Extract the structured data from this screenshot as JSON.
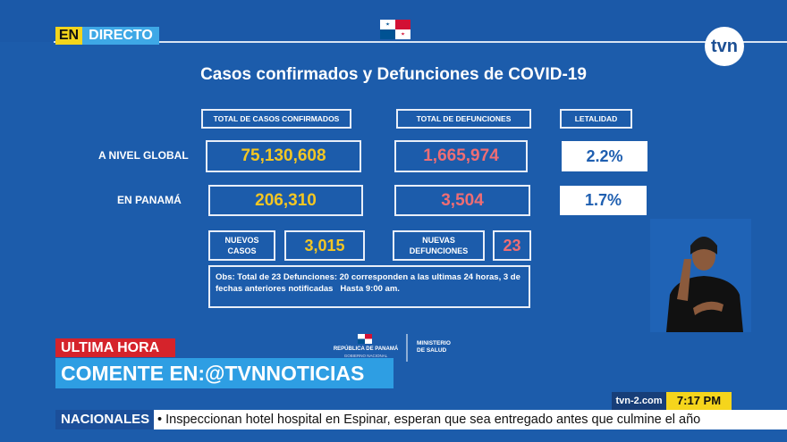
{
  "badge": {
    "en": "EN",
    "directo": "DIRECTO"
  },
  "title": "Casos confirmados y Defunciones de COVID-19",
  "table": {
    "headers": [
      "TOTAL DE CASOS CONFIRMADOS",
      "TOTAL DE DEFUNCIONES",
      "LETALIDAD"
    ],
    "rows": [
      {
        "label": "A NIVEL GLOBAL",
        "cases": "75,130,608",
        "deaths": "1,665,974",
        "lethality": "2.2%"
      },
      {
        "label": "EN PANAMÁ",
        "cases": "206,310",
        "deaths": "3,504",
        "lethality": "1.7%"
      }
    ]
  },
  "new": {
    "cases_label": "NUEVOS CASOS",
    "cases": "3,015",
    "deaths_label": "NUEVAS DEFUNCIONES",
    "deaths": "23"
  },
  "note": "Obs: Total de 23 Defunciones: 20 corresponden a las ultimas 24 horas, 3 de fechas anteriores notificadas   Hasta 9:00 am.",
  "ministry": {
    "country": "REPÚBLICA DE PANAMÁ",
    "government": "GOBIERNO NACIONAL",
    "name": "MINISTERIO DE SALUD"
  },
  "logo": "tvn",
  "lower_third": {
    "tag": "ULTIMA HORA",
    "headline": "COMENTE EN:@TVNNOTICIAS"
  },
  "site": "tvn-2.com",
  "time": "7:17 PM",
  "ticker": {
    "section": "NACIONALES",
    "text": "• Inspeccionan hotel hospital en Espinar, esperan que sea entregado antes que culmine el año"
  }
}
